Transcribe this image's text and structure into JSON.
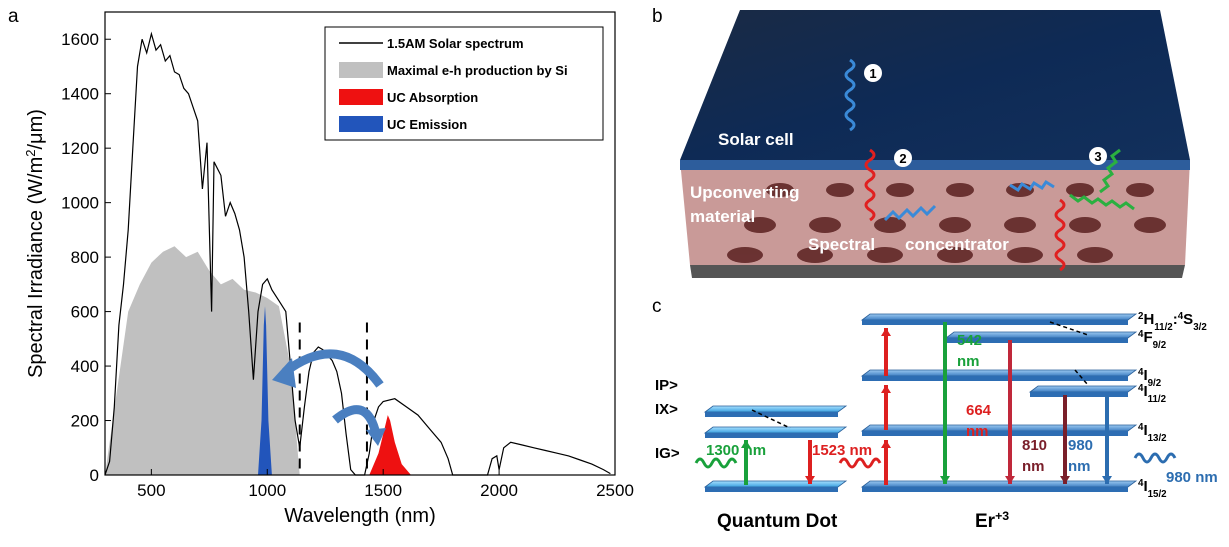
{
  "panel_labels": [
    "a",
    "b",
    "c"
  ],
  "chart_data": {
    "type": "line",
    "x_label": "Wavelength (nm)",
    "y_label": [
      {
        "text": "Spectral Irradiance (W/m",
        "style": "normal"
      },
      {
        "text": "2",
        "style": "sup"
      },
      {
        "text": "/μm)",
        "style": "normal"
      }
    ],
    "xlim": [
      300,
      2500
    ],
    "xticks": [
      500,
      1000,
      1500,
      2000,
      2500
    ],
    "ylim": [
      0,
      1700
    ],
    "yticks": [
      0,
      200,
      400,
      600,
      800,
      1000,
      1200,
      1400,
      1600
    ],
    "legend": "top-right",
    "dashed_lines_x": [
      1140,
      1430
    ],
    "series": [
      {
        "name": "1.5AM Solar spectrum",
        "color": "#000000",
        "style": "line",
        "x": [
          300,
          320,
          340,
          360,
          380,
          400,
          420,
          440,
          460,
          480,
          500,
          520,
          540,
          560,
          580,
          600,
          620,
          640,
          660,
          680,
          700,
          720,
          740,
          760,
          770,
          800,
          820,
          840,
          860,
          880,
          900,
          920,
          940,
          960,
          980,
          1000,
          1020,
          1050,
          1080,
          1100,
          1120,
          1140,
          1160,
          1180,
          1200,
          1220,
          1240,
          1260,
          1280,
          1300,
          1320,
          1340,
          1360,
          1380,
          1420,
          1440,
          1460,
          1480,
          1500,
          1550,
          1600,
          1650,
          1700,
          1750,
          1780,
          1800,
          1950,
          1970,
          1990,
          2000,
          2020,
          2050,
          2100,
          2150,
          2200,
          2250,
          2300,
          2350,
          2400,
          2450,
          2480
        ],
        "values": [
          0,
          50,
          250,
          550,
          700,
          900,
          1200,
          1500,
          1600,
          1550,
          1620,
          1560,
          1580,
          1520,
          1540,
          1480,
          1470,
          1420,
          1400,
          1350,
          1300,
          1050,
          1220,
          600,
          1150,
          1100,
          950,
          1000,
          960,
          900,
          800,
          600,
          350,
          600,
          700,
          720,
          680,
          640,
          600,
          400,
          200,
          100,
          250,
          380,
          450,
          470,
          460,
          440,
          420,
          380,
          300,
          150,
          20,
          0,
          0,
          80,
          200,
          250,
          270,
          280,
          250,
          220,
          170,
          120,
          60,
          0,
          0,
          60,
          70,
          20,
          100,
          120,
          110,
          100,
          90,
          80,
          70,
          55,
          40,
          20,
          5
        ]
      },
      {
        "name": "Maximal e-h production by Si",
        "color": "#c0c0c0",
        "style": "area",
        "x": [
          300,
          350,
          400,
          450,
          500,
          550,
          600,
          650,
          700,
          750,
          800,
          850,
          900,
          950,
          1000,
          1050,
          1100,
          1140
        ],
        "values": [
          0,
          300,
          600,
          700,
          780,
          820,
          840,
          800,
          820,
          750,
          700,
          720,
          680,
          670,
          650,
          620,
          400,
          0
        ]
      },
      {
        "name": "UC Absorption",
        "color": "#ee1111",
        "style": "area",
        "x": [
          1440,
          1480,
          1500,
          1520,
          1530,
          1550,
          1580,
          1620
        ],
        "values": [
          0,
          80,
          150,
          220,
          200,
          120,
          40,
          0
        ]
      },
      {
        "name": "UC Emission",
        "color": "#2255bb",
        "style": "area",
        "x": [
          960,
          975,
          985,
          990,
          995,
          1005,
          1020
        ],
        "values": [
          0,
          200,
          550,
          620,
          550,
          200,
          0
        ]
      }
    ]
  },
  "panel_b": {
    "solar_cell": "Solar cell",
    "upconverting": [
      "Upconverting",
      "material"
    ],
    "spectral": "Spectral",
    "concentrator": "concentrator",
    "markers": [
      "1",
      "2",
      "3"
    ]
  },
  "panel_c": {
    "qd_states": [
      "IP>",
      "IX>",
      "IG>"
    ],
    "qd_title": "Quantum Dot",
    "er_title": [
      {
        "text": "Er",
        "style": "normal"
      },
      {
        "text": "+3",
        "style": "sup"
      }
    ],
    "levels": [
      [
        {
          "text": "2",
          "style": "sup"
        },
        {
          "text": "H",
          "style": "normal"
        },
        {
          "text": "11/2",
          "style": "sub"
        },
        {
          "text": ":",
          "style": "normal"
        },
        {
          "text": "4",
          "style": "sup"
        },
        {
          "text": "S",
          "style": "normal"
        },
        {
          "text": "3/2",
          "style": "sub"
        }
      ],
      [
        {
          "text": "4",
          "style": "sup"
        },
        {
          "text": "F",
          "style": "normal"
        },
        {
          "text": "9/2",
          "style": "sub"
        }
      ],
      [
        {
          "text": "4",
          "style": "sup"
        },
        {
          "text": "I",
          "style": "normal"
        },
        {
          "text": "9/2",
          "style": "sub"
        }
      ],
      [
        {
          "text": "4",
          "style": "sup"
        },
        {
          "text": "I",
          "style": "normal"
        },
        {
          "text": "11/2",
          "style": "sub"
        }
      ],
      [
        {
          "text": "4",
          "style": "sup"
        },
        {
          "text": "I",
          "style": "normal"
        },
        {
          "text": "13/2",
          "style": "sub"
        }
      ],
      [
        {
          "text": "4",
          "style": "sup"
        },
        {
          "text": "I",
          "style": "normal"
        },
        {
          "text": "15/2",
          "style": "sub"
        }
      ]
    ],
    "wavelengths": {
      "qd_in": "1300 nm",
      "qd_out": "1523 nm",
      "green": [
        "542",
        "nm"
      ],
      "red": [
        "664",
        "nm"
      ],
      "dark": [
        "810",
        "nm"
      ],
      "blue": [
        "980",
        "nm"
      ],
      "emission": "980 nm"
    }
  }
}
